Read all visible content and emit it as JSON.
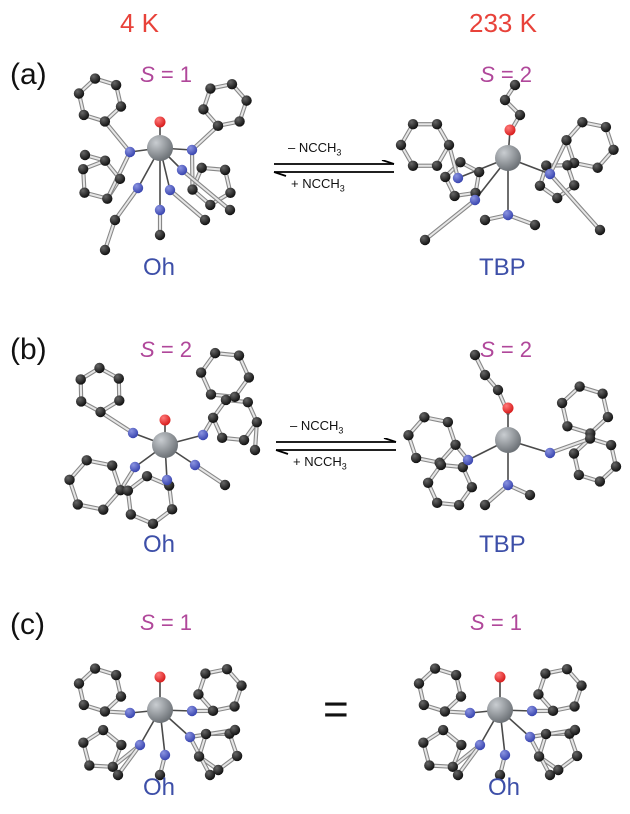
{
  "temperatures": {
    "low": "4 K",
    "high": "233 K"
  },
  "panels": [
    {
      "label": "(a)",
      "left": {
        "spin_symbol": "S",
        "spin_value": "= 1",
        "geometry": "Oh"
      },
      "right": {
        "spin_symbol": "S",
        "spin_value": "= 2",
        "geometry": "TBP"
      },
      "equilibrium": {
        "forward_text": "– NCCH",
        "forward_sub": "3",
        "reverse_text": "+ NCCH",
        "reverse_sub": "3"
      }
    },
    {
      "label": "(b)",
      "left": {
        "spin_symbol": "S",
        "spin_value": "= 2",
        "geometry": "Oh"
      },
      "right": {
        "spin_symbol": "S",
        "spin_value": "= 2",
        "geometry": "TBP"
      },
      "equilibrium": {
        "forward_text": "– NCCH",
        "forward_sub": "3",
        "reverse_text": "+ NCCH",
        "reverse_sub": "3"
      }
    },
    {
      "label": "(c)",
      "left": {
        "spin_symbol": "S",
        "spin_value": "= 1",
        "geometry": "Oh"
      },
      "right": {
        "spin_symbol": "S",
        "spin_value": "= 1",
        "geometry": "Oh"
      },
      "relation": "="
    }
  ],
  "colors": {
    "temperature": "#e8423a",
    "spin": "#b0479a",
    "geometry": "#3d4fa8",
    "carbon": "#111111",
    "nitrogen": "#3a46b0",
    "oxygen": "#d81e1e",
    "iron": "#6e7378"
  }
}
